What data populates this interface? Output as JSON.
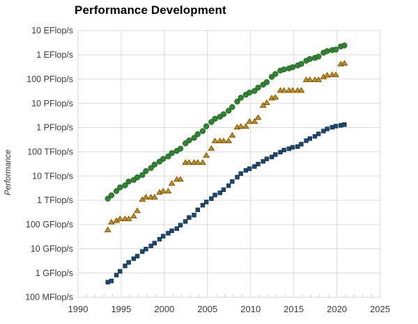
{
  "chart": {
    "title": "Performance Development",
    "ylabel": "Performance"
  },
  "chart_data": {
    "type": "scatter",
    "title": "Performance Development",
    "xlabel": "",
    "ylabel": "Performance",
    "unit": "GFlop/s",
    "y_scale": "log",
    "grid": true,
    "legend_position": "none",
    "xlim": [
      1990,
      2025
    ],
    "ylim_gflops": [
      0.1,
      10000000000
    ],
    "x_ticks": [
      "1990",
      "1995",
      "2000",
      "2005",
      "2010",
      "2015",
      "2020",
      "2025"
    ],
    "x_tick_values": [
      1990,
      1995,
      2000,
      2005,
      2010,
      2015,
      2020,
      2025
    ],
    "y_ticks": [
      "100 MFlop/s",
      "1 GFlop/s",
      "10 GFlop/s",
      "100 GFlop/s",
      "1 TFlop/s",
      "10 TFlop/s",
      "100 TFlop/s",
      "1 PFlop/s",
      "10 PFlop/s",
      "100 PFlop/s",
      "1 EFlop/s",
      "10 EFlop/s"
    ],
    "y_tick_values_gflops": [
      0.1,
      1,
      10,
      100,
      1000,
      10000,
      100000,
      1000000,
      10000000,
      100000000,
      1000000000,
      10000000000
    ],
    "x": [
      1993.45,
      1993.87,
      1994.45,
      1994.87,
      1995.45,
      1995.87,
      1996.45,
      1996.87,
      1997.45,
      1997.87,
      1998.45,
      1998.87,
      1999.45,
      1999.87,
      2000.45,
      2000.87,
      2001.45,
      2001.87,
      2002.45,
      2002.87,
      2003.45,
      2003.87,
      2004.45,
      2004.87,
      2005.45,
      2005.87,
      2006.45,
      2006.87,
      2007.45,
      2007.87,
      2008.45,
      2008.87,
      2009.45,
      2009.87,
      2010.45,
      2010.87,
      2011.45,
      2011.87,
      2012.45,
      2012.87,
      2013.45,
      2013.87,
      2014.45,
      2014.87,
      2015.45,
      2015.87,
      2016.45,
      2016.87,
      2017.45,
      2017.87,
      2018.45,
      2018.87,
      2019.45,
      2019.87,
      2020.45,
      2020.87
    ],
    "series": [
      {
        "name": "sum-green-circles",
        "marker": "circle",
        "color": "#2d862d",
        "edge_color": "#1f6b22",
        "values": [
          1170,
          1600,
          2400,
          3400,
          4100,
          5900,
          6900,
          8800,
          11000,
          16000,
          21400,
          29600,
          39400,
          50900,
          64200,
          88100,
          108800,
          134400,
          222000,
          293000,
          375000,
          528000,
          713000,
          1127000,
          1690000,
          2300000,
          2790000,
          3540000,
          4920000,
          6970000,
          11700000,
          16950000,
          22600000,
          27600000,
          32400000,
          44200000,
          58700000,
          74200000,
          123400000,
          162000000,
          223000000,
          250000000,
          274000000,
          309000000,
          363000000,
          420000000,
          566700000,
          672000000,
          749000000,
          845000000,
          1220000000,
          1417000000,
          1560000000,
          1650000000,
          2220000000,
          2430000000
        ]
      },
      {
        "name": "number1-orange-triangles",
        "marker": "triangle",
        "color": "#cf8d0f",
        "edge_color": "#7e5706",
        "values": [
          59.7,
          124.5,
          143.4,
          170.4,
          170.4,
          170.4,
          220.4,
          368.2,
          1068,
          1338,
          1338,
          1338,
          2121,
          2379,
          2379,
          4938,
          7226,
          7226,
          35860,
          35860,
          35860,
          35860,
          35860,
          70720,
          136800,
          280600,
          280600,
          280600,
          280600,
          478200,
          1026000,
          1105000,
          1105000,
          1759000,
          1759000,
          2566000,
          8162000,
          10510000,
          16324750,
          17590000,
          33862700,
          33862700,
          33862700,
          33862700,
          33862700,
          33862700,
          93014600,
          93014600,
          93014600,
          93014600,
          122300000,
          143500000,
          148600000,
          148600000,
          415530000,
          442010000
        ]
      },
      {
        "name": "number500-blue-squares",
        "marker": "square",
        "color": "#1a4a73",
        "edge_color": "#0e2f4d",
        "values": [
          0.42,
          0.47,
          0.82,
          1.17,
          1.96,
          2.73,
          3.89,
          4.95,
          7.68,
          9.69,
          13.1,
          17.1,
          24.7,
          33.1,
          43.8,
          55.1,
          67.8,
          94.3,
          134,
          195,
          245,
          403,
          624,
          850,
          1166,
          1646,
          2026,
          2737,
          4005,
          5930,
          9000,
          12640,
          17100,
          20050,
          24670,
          31100,
          40190,
          50900,
          60800,
          76450,
          96600,
          117800,
          133700,
          153400,
          164800,
          206300,
          286100,
          349300,
          432200,
          548700,
          716000,
          874800,
          1022000,
          1142000,
          1230000,
          1320000
        ]
      }
    ],
    "style": {
      "grid_color": "#d9d9d9",
      "minor_tick_color": "#c9c9c9",
      "tick_label_color": "#3c3c3c",
      "background": "#ffffff"
    }
  }
}
